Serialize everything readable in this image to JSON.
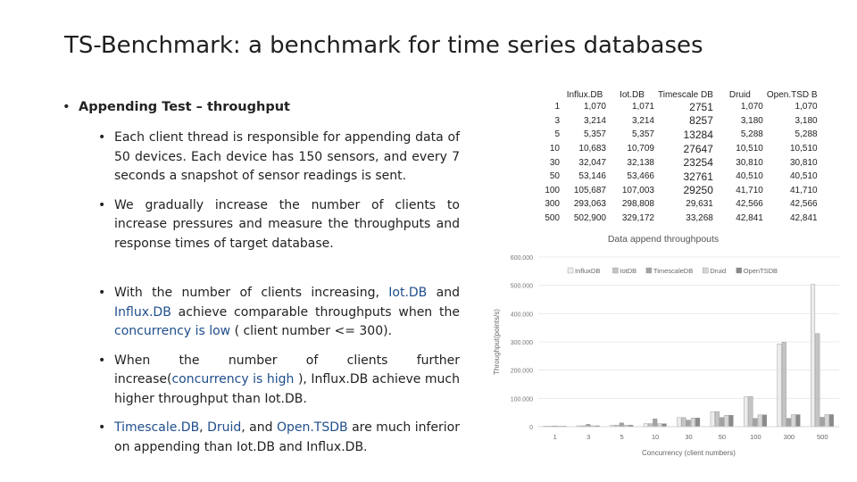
{
  "slide": {
    "title": "TS-Benchmark: a benchmark for time series databases"
  },
  "bullets": {
    "b1": "Appending Test – throughput",
    "b2": "Each client thread is responsible for appending data of 50 devices. Each device has 150 sensors, and every 7 seconds a snapshot of sensor readings is sent.",
    "b3": "We gradually increase the number of clients to increase pressures and measure the throughputs and response times of target database.",
    "b4_pre": "With the number of clients increasing, ",
    "b4_iot": "Iot.DB",
    "b4_and": " and ",
    "b4_influx": "Influx.DB",
    "b4_mid": " achieve comparable throughputs when the ",
    "b4_conc": "concurrency is low",
    "b4_post": " ( client number <= 300).",
    "b5_pre": "When the number of clients further increase(",
    "b5_conc": "concurrency is high",
    "b5_post": " ), Influx.DB achieve much higher throughput than Iot.DB.",
    "b6_ts": "Timescale.DB",
    "b6_c1": ", ",
    "b6_dr": "Druid",
    "b6_c2": ", and ",
    "b6_op": "Open.TSDB",
    "b6_post": " are much inferior on appending than Iot.DB and Influx.DB."
  },
  "table": {
    "headers": [
      "Influx.DB",
      "Iot.DB",
      "Timescale DB",
      "Druid",
      "Open.TSD B",
      ""
    ],
    "rows": [
      [
        "1",
        "1,070",
        "1,071",
        "2751",
        "1,070",
        "1,070"
      ],
      [
        "3",
        "3,214",
        "3,214",
        "8257",
        "3,180",
        "3,180"
      ],
      [
        "5",
        "5,357",
        "5,357",
        "13284",
        "5,288",
        "5,288"
      ],
      [
        "10",
        "10,683",
        "10,709",
        "27647",
        "10,510",
        "10,510"
      ],
      [
        "30",
        "32,047",
        "32,138",
        "23254",
        "30,810",
        "30,810"
      ],
      [
        "50",
        "53,146",
        "53,466",
        "32761",
        "40,510",
        "40,510"
      ],
      [
        "100",
        "105,687",
        "107,003",
        "29250",
        "41,710",
        "41,710"
      ],
      [
        "300",
        "293,063",
        "298,808",
        "29,631",
        "42,566",
        "42,566"
      ],
      [
        "500",
        "502,900",
        "329,172",
        "33,268",
        "42,841",
        "42,841"
      ]
    ]
  },
  "chart_data": {
    "type": "bar",
    "title": "Data append throughpouts",
    "xlabel": "Concurrency (client numbers)",
    "ylabel": "Throughput(points/s)",
    "categories": [
      "1",
      "3",
      "5",
      "10",
      "30",
      "50",
      "100",
      "300",
      "500"
    ],
    "ylim": [
      0,
      600000
    ],
    "yticks": [
      "0",
      "100.000",
      "200.000",
      "300.000",
      "400.000",
      "500.000",
      "600.000"
    ],
    "legend_position": "top",
    "series": [
      {
        "name": "InfluxDB",
        "color": "#ececec",
        "values": [
          1070,
          3214,
          5357,
          10683,
          32047,
          53146,
          105687,
          293063,
          502900
        ]
      },
      {
        "name": "IotDB",
        "color": "#c4c4c4",
        "values": [
          1071,
          3214,
          5357,
          10709,
          32138,
          53466,
          107003,
          298808,
          329172
        ]
      },
      {
        "name": "TimescaleDB",
        "color": "#a3a3a3",
        "values": [
          2751,
          8257,
          13284,
          27647,
          23254,
          32761,
          29250,
          29631,
          33268
        ]
      },
      {
        "name": "Druid",
        "color": "#d6d6d6",
        "values": [
          1070,
          3180,
          5288,
          10510,
          30810,
          40510,
          41710,
          42566,
          42841
        ]
      },
      {
        "name": "OpenTSDB",
        "color": "#8a8a8a",
        "values": [
          1070,
          3180,
          5288,
          10510,
          30810,
          40510,
          41710,
          42566,
          42841
        ]
      }
    ]
  }
}
